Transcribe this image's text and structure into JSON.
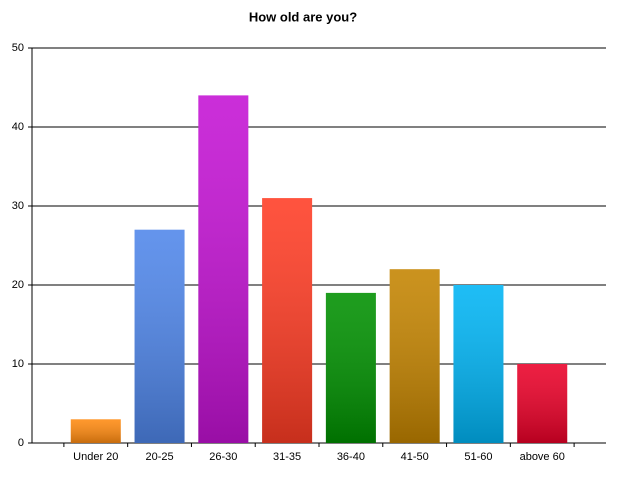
{
  "chart_data": {
    "type": "bar",
    "title": "How old are you?",
    "categories": [
      "Under 20",
      "20-25",
      "26-30",
      "31-35",
      "36-40",
      "41-50",
      "51-60",
      "above 60"
    ],
    "values": [
      3,
      27,
      44,
      31,
      19,
      22,
      20,
      10
    ],
    "colors": [
      "#ff8a10",
      "#4f86ea",
      "#c412d4",
      "#ff3c24",
      "#009000",
      "#c48400",
      "#00b4f4",
      "#ea0028"
    ],
    "ylim": [
      0,
      50
    ],
    "yticks": [
      0,
      10,
      20,
      30,
      40,
      50
    ],
    "grid": true
  }
}
